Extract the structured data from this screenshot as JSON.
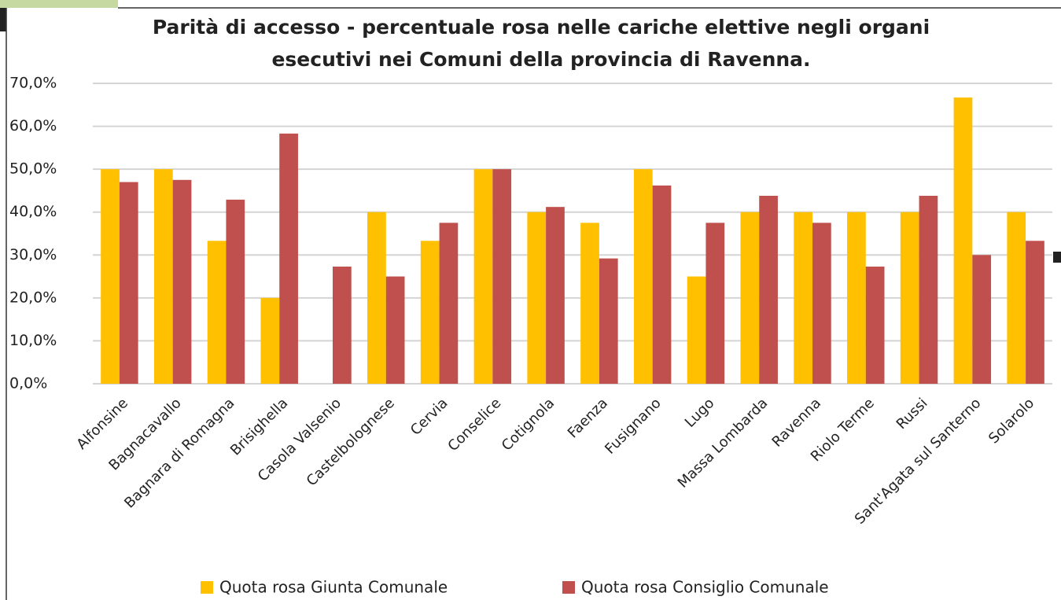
{
  "chart_data": {
    "type": "bar",
    "title": [
      "Parità di accesso - percentuale rosa nelle cariche elettive negli organi",
      "esecutivi nei Comuni della provincia di Ravenna."
    ],
    "categories": [
      "Alfonsine",
      "Bagnacavallo",
      "Bagnara di Romagna",
      "Brisighella",
      "Casola Valsenio",
      "Castelbolognese",
      "Cervia",
      "Conselice",
      "Cotignola",
      "Faenza",
      "Fusignano",
      "Lugo",
      "Massa Lombarda",
      "Ravenna",
      "Riolo Terme",
      "Russi",
      "Sant'Agata sul Santerno",
      "Solarolo"
    ],
    "series": [
      {
        "name": "Quota rosa Giunta Comunale",
        "color": "#ffc000",
        "values": [
          50,
          50,
          33.3,
          20,
          0,
          40,
          33.3,
          50,
          40,
          37.5,
          50,
          25,
          40,
          40,
          40,
          40,
          66.7,
          40
        ]
      },
      {
        "name": "Quota rosa Consiglio Comunale",
        "color": "#c0504d",
        "values": [
          47,
          47.5,
          42.9,
          58.3,
          27.3,
          25,
          37.5,
          50,
          41.2,
          29.2,
          46.2,
          37.5,
          43.8,
          37.5,
          27.3,
          43.8,
          30,
          33.3
        ]
      }
    ],
    "ylim": [
      0,
      70
    ],
    "yticks": [
      {
        "value": 0,
        "label": "0,0%"
      },
      {
        "value": 10,
        "label": "10,0%"
      },
      {
        "value": 20,
        "label": "20,0%"
      },
      {
        "value": 30,
        "label": "30,0%"
      },
      {
        "value": 40,
        "label": "40,0%"
      },
      {
        "value": 50,
        "label": "50,0%"
      },
      {
        "value": 60,
        "label": "60,0%"
      },
      {
        "value": 70,
        "label": "70,0%"
      }
    ],
    "grid": true,
    "legend": "bottom"
  }
}
